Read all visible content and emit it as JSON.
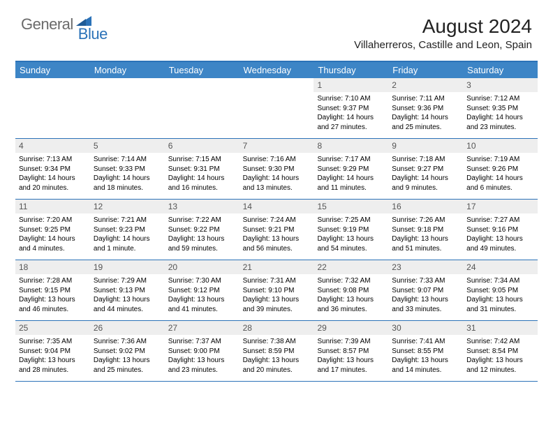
{
  "logo": {
    "text1": "General",
    "text2": "Blue"
  },
  "title": "August 2024",
  "location": "Villaherreros, Castille and Leon, Spain",
  "colors": {
    "headerBg": "#3d85c6",
    "accent": "#2b72b8",
    "dayNumBg": "#eeeeee",
    "logoGray": "#6a6a6a"
  },
  "dayNames": [
    "Sunday",
    "Monday",
    "Tuesday",
    "Wednesday",
    "Thursday",
    "Friday",
    "Saturday"
  ],
  "weeks": [
    [
      {
        "n": "",
        "sr": "",
        "ss": "",
        "dl": ""
      },
      {
        "n": "",
        "sr": "",
        "ss": "",
        "dl": ""
      },
      {
        "n": "",
        "sr": "",
        "ss": "",
        "dl": ""
      },
      {
        "n": "",
        "sr": "",
        "ss": "",
        "dl": ""
      },
      {
        "n": "1",
        "sr": "Sunrise: 7:10 AM",
        "ss": "Sunset: 9:37 PM",
        "dl": "Daylight: 14 hours and 27 minutes."
      },
      {
        "n": "2",
        "sr": "Sunrise: 7:11 AM",
        "ss": "Sunset: 9:36 PM",
        "dl": "Daylight: 14 hours and 25 minutes."
      },
      {
        "n": "3",
        "sr": "Sunrise: 7:12 AM",
        "ss": "Sunset: 9:35 PM",
        "dl": "Daylight: 14 hours and 23 minutes."
      }
    ],
    [
      {
        "n": "4",
        "sr": "Sunrise: 7:13 AM",
        "ss": "Sunset: 9:34 PM",
        "dl": "Daylight: 14 hours and 20 minutes."
      },
      {
        "n": "5",
        "sr": "Sunrise: 7:14 AM",
        "ss": "Sunset: 9:33 PM",
        "dl": "Daylight: 14 hours and 18 minutes."
      },
      {
        "n": "6",
        "sr": "Sunrise: 7:15 AM",
        "ss": "Sunset: 9:31 PM",
        "dl": "Daylight: 14 hours and 16 minutes."
      },
      {
        "n": "7",
        "sr": "Sunrise: 7:16 AM",
        "ss": "Sunset: 9:30 PM",
        "dl": "Daylight: 14 hours and 13 minutes."
      },
      {
        "n": "8",
        "sr": "Sunrise: 7:17 AM",
        "ss": "Sunset: 9:29 PM",
        "dl": "Daylight: 14 hours and 11 minutes."
      },
      {
        "n": "9",
        "sr": "Sunrise: 7:18 AM",
        "ss": "Sunset: 9:27 PM",
        "dl": "Daylight: 14 hours and 9 minutes."
      },
      {
        "n": "10",
        "sr": "Sunrise: 7:19 AM",
        "ss": "Sunset: 9:26 PM",
        "dl": "Daylight: 14 hours and 6 minutes."
      }
    ],
    [
      {
        "n": "11",
        "sr": "Sunrise: 7:20 AM",
        "ss": "Sunset: 9:25 PM",
        "dl": "Daylight: 14 hours and 4 minutes."
      },
      {
        "n": "12",
        "sr": "Sunrise: 7:21 AM",
        "ss": "Sunset: 9:23 PM",
        "dl": "Daylight: 14 hours and 1 minute."
      },
      {
        "n": "13",
        "sr": "Sunrise: 7:22 AM",
        "ss": "Sunset: 9:22 PM",
        "dl": "Daylight: 13 hours and 59 minutes."
      },
      {
        "n": "14",
        "sr": "Sunrise: 7:24 AM",
        "ss": "Sunset: 9:21 PM",
        "dl": "Daylight: 13 hours and 56 minutes."
      },
      {
        "n": "15",
        "sr": "Sunrise: 7:25 AM",
        "ss": "Sunset: 9:19 PM",
        "dl": "Daylight: 13 hours and 54 minutes."
      },
      {
        "n": "16",
        "sr": "Sunrise: 7:26 AM",
        "ss": "Sunset: 9:18 PM",
        "dl": "Daylight: 13 hours and 51 minutes."
      },
      {
        "n": "17",
        "sr": "Sunrise: 7:27 AM",
        "ss": "Sunset: 9:16 PM",
        "dl": "Daylight: 13 hours and 49 minutes."
      }
    ],
    [
      {
        "n": "18",
        "sr": "Sunrise: 7:28 AM",
        "ss": "Sunset: 9:15 PM",
        "dl": "Daylight: 13 hours and 46 minutes."
      },
      {
        "n": "19",
        "sr": "Sunrise: 7:29 AM",
        "ss": "Sunset: 9:13 PM",
        "dl": "Daylight: 13 hours and 44 minutes."
      },
      {
        "n": "20",
        "sr": "Sunrise: 7:30 AM",
        "ss": "Sunset: 9:12 PM",
        "dl": "Daylight: 13 hours and 41 minutes."
      },
      {
        "n": "21",
        "sr": "Sunrise: 7:31 AM",
        "ss": "Sunset: 9:10 PM",
        "dl": "Daylight: 13 hours and 39 minutes."
      },
      {
        "n": "22",
        "sr": "Sunrise: 7:32 AM",
        "ss": "Sunset: 9:08 PM",
        "dl": "Daylight: 13 hours and 36 minutes."
      },
      {
        "n": "23",
        "sr": "Sunrise: 7:33 AM",
        "ss": "Sunset: 9:07 PM",
        "dl": "Daylight: 13 hours and 33 minutes."
      },
      {
        "n": "24",
        "sr": "Sunrise: 7:34 AM",
        "ss": "Sunset: 9:05 PM",
        "dl": "Daylight: 13 hours and 31 minutes."
      }
    ],
    [
      {
        "n": "25",
        "sr": "Sunrise: 7:35 AM",
        "ss": "Sunset: 9:04 PM",
        "dl": "Daylight: 13 hours and 28 minutes."
      },
      {
        "n": "26",
        "sr": "Sunrise: 7:36 AM",
        "ss": "Sunset: 9:02 PM",
        "dl": "Daylight: 13 hours and 25 minutes."
      },
      {
        "n": "27",
        "sr": "Sunrise: 7:37 AM",
        "ss": "Sunset: 9:00 PM",
        "dl": "Daylight: 13 hours and 23 minutes."
      },
      {
        "n": "28",
        "sr": "Sunrise: 7:38 AM",
        "ss": "Sunset: 8:59 PM",
        "dl": "Daylight: 13 hours and 20 minutes."
      },
      {
        "n": "29",
        "sr": "Sunrise: 7:39 AM",
        "ss": "Sunset: 8:57 PM",
        "dl": "Daylight: 13 hours and 17 minutes."
      },
      {
        "n": "30",
        "sr": "Sunrise: 7:41 AM",
        "ss": "Sunset: 8:55 PM",
        "dl": "Daylight: 13 hours and 14 minutes."
      },
      {
        "n": "31",
        "sr": "Sunrise: 7:42 AM",
        "ss": "Sunset: 8:54 PM",
        "dl": "Daylight: 13 hours and 12 minutes."
      }
    ]
  ]
}
